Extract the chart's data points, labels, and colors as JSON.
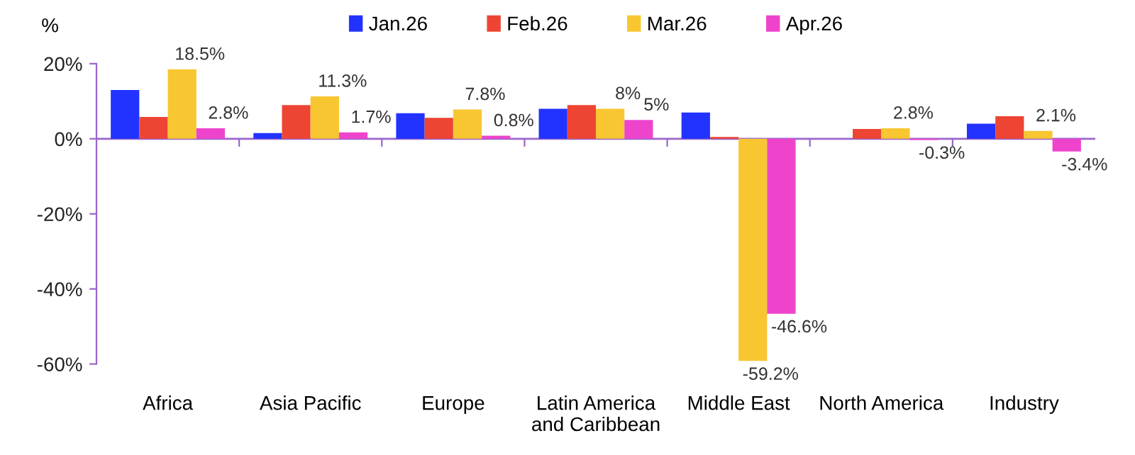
{
  "chart_data": {
    "type": "bar",
    "ylabel": "%",
    "categories": [
      "Africa",
      "Asia Pacific",
      "Europe",
      "Latin America\nand Caribbean",
      "Middle East",
      "North America",
      "Industry"
    ],
    "series": [
      {
        "name": "Jan.26",
        "color": "#2233ff",
        "values": [
          13,
          1.5,
          6.8,
          8,
          7,
          null,
          4
        ]
      },
      {
        "name": "Feb.26",
        "color": "#ee4433",
        "values": [
          5.8,
          9,
          5.6,
          9,
          0.5,
          2.6,
          6
        ]
      },
      {
        "name": "Mar.26",
        "color": "#f8c630",
        "values": [
          18.5,
          11.3,
          7.8,
          8,
          -59.2,
          2.8,
          2.1
        ],
        "value_labels": [
          "18.5%",
          "11.3%",
          "7.8%",
          "8%",
          "-59.2%",
          "2.8%",
          "2.1%"
        ]
      },
      {
        "name": "Apr.26",
        "color": "#ee44cc",
        "values": [
          2.8,
          1.7,
          0.8,
          5,
          -46.6,
          -0.3,
          -3.4
        ],
        "value_labels": [
          "2.8%",
          "1.7%",
          "0.8%",
          "5%",
          "-46.6%",
          "-0.3%",
          "-3.4%"
        ]
      }
    ],
    "ylim": [
      -60,
      20
    ],
    "yticks": [
      {
        "value": -60,
        "label": "-60%"
      },
      {
        "value": -40,
        "label": "-40%"
      },
      {
        "value": -20,
        "label": "-20%"
      },
      {
        "value": 0,
        "label": "0%"
      },
      {
        "value": 20,
        "label": "20%"
      }
    ],
    "ref_lines": [
      {
        "axis": "y",
        "value": 0,
        "color": "#9966cc"
      }
    ],
    "grid": false,
    "legend": "top"
  }
}
